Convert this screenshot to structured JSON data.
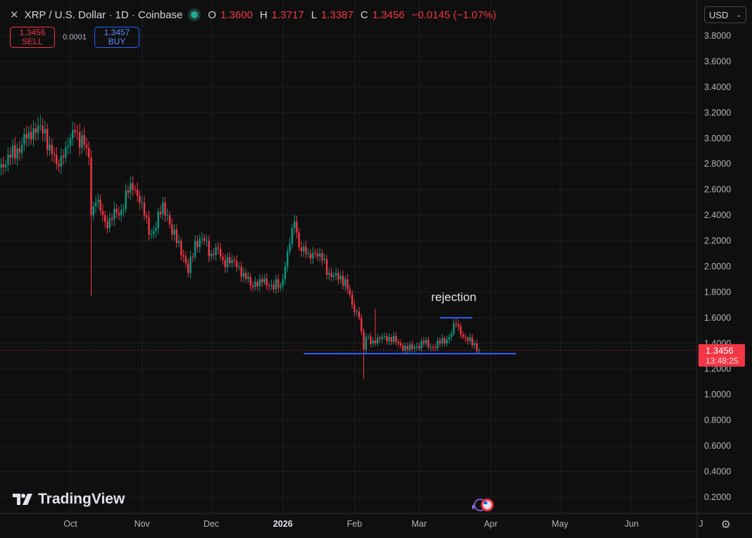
{
  "header": {
    "symbol_title": "XRP / U.S. Dollar · 1D · Coinbase",
    "close_icon": "close-icon",
    "market_status": "market-open-dot",
    "ohlc": {
      "o_label": "O",
      "o": "1.3600",
      "h_label": "H",
      "h": "1.3717",
      "l_label": "L",
      "l": "1.3387",
      "c_label": "C",
      "c": "1.3456",
      "change": "−0.0145 (−1.07%)"
    }
  },
  "trade": {
    "sell_price": "1.3456",
    "sell_label": "SELL",
    "spread": "0.0001",
    "buy_price": "1.3457",
    "buy_label": "BUY"
  },
  "currency": {
    "value": "USD",
    "icon": "chevron-down-icon"
  },
  "branding": {
    "logo_text": "TradingView"
  },
  "colors": {
    "up": "#089981",
    "down": "#f23645",
    "drawing": "#2962ff",
    "background": "#0f0f0f",
    "price_label": "#f23645"
  },
  "price_label": {
    "price": "1.3456",
    "countdown": "13:48:25"
  },
  "chart_data": {
    "type": "candlestick",
    "title": "XRP / U.S. Dollar · 1D · Coinbase",
    "interval": "1D",
    "grid": true,
    "y_ticks": [
      "3.8000",
      "3.6000",
      "3.4000",
      "3.2000",
      "3.0000",
      "2.8000",
      "2.6000",
      "2.4000",
      "2.2000",
      "2.0000",
      "1.8000",
      "1.6000",
      "1.4000",
      "1.2000",
      "1.0000",
      "0.8000",
      "0.6000",
      "0.4000",
      "0.2000"
    ],
    "ylim": [
      0.2,
      3.8
    ],
    "x_ticks": [
      {
        "label": "Oct",
        "date": "2025-10-01",
        "bold": false
      },
      {
        "label": "Nov",
        "date": "2025-11-01",
        "bold": false
      },
      {
        "label": "Dec",
        "date": "2025-12-01",
        "bold": false
      },
      {
        "label": "2026",
        "date": "2026-01-01",
        "bold": true
      },
      {
        "label": "Feb",
        "date": "2026-02-01",
        "bold": false
      },
      {
        "label": "Mar",
        "date": "2026-03-01",
        "bold": false
      },
      {
        "label": "Apr",
        "date": "2026-04-01",
        "bold": false
      },
      {
        "label": "May",
        "date": "2026-05-01",
        "bold": false
      },
      {
        "label": "Jun",
        "date": "2026-06-01",
        "bold": false
      },
      {
        "label": "J",
        "date": "2026-07-01",
        "bold": false
      }
    ],
    "approx_close_path": [
      [
        "2025-09-01",
        2.8
      ],
      [
        "2025-09-05",
        2.85
      ],
      [
        "2025-09-10",
        2.95
      ],
      [
        "2025-09-13",
        3.05
      ],
      [
        "2025-09-18",
        3.1
      ],
      [
        "2025-09-22",
        2.95
      ],
      [
        "2025-09-25",
        2.8
      ],
      [
        "2025-09-28",
        2.85
      ],
      [
        "2025-10-01",
        3.0
      ],
      [
        "2025-10-03",
        3.05
      ],
      [
        "2025-10-07",
        2.95
      ],
      [
        "2025-10-09",
        2.85
      ],
      [
        "2025-10-10",
        2.4
      ],
      [
        "2025-10-12",
        2.5
      ],
      [
        "2025-10-15",
        2.4
      ],
      [
        "2025-10-17",
        2.3
      ],
      [
        "2025-10-20",
        2.45
      ],
      [
        "2025-10-22",
        2.4
      ],
      [
        "2025-10-27",
        2.65
      ],
      [
        "2025-10-29",
        2.6
      ],
      [
        "2025-11-01",
        2.5
      ],
      [
        "2025-11-04",
        2.25
      ],
      [
        "2025-11-07",
        2.3
      ],
      [
        "2025-11-10",
        2.5
      ],
      [
        "2025-11-12",
        2.4
      ],
      [
        "2025-11-14",
        2.25
      ],
      [
        "2025-11-17",
        2.2
      ],
      [
        "2025-11-21",
        1.95
      ],
      [
        "2025-11-24",
        2.2
      ],
      [
        "2025-11-28",
        2.2
      ],
      [
        "2025-12-01",
        2.1
      ],
      [
        "2025-12-03",
        2.15
      ],
      [
        "2025-12-06",
        2.05
      ],
      [
        "2025-12-10",
        2.05
      ],
      [
        "2025-12-15",
        1.95
      ],
      [
        "2025-12-18",
        1.85
      ],
      [
        "2025-12-22",
        1.9
      ],
      [
        "2025-12-26",
        1.85
      ],
      [
        "2025-12-31",
        1.85
      ],
      [
        "2026-01-02",
        2.0
      ],
      [
        "2026-01-05",
        2.3
      ],
      [
        "2026-01-06",
        2.35
      ],
      [
        "2026-01-08",
        2.15
      ],
      [
        "2026-01-12",
        2.1
      ],
      [
        "2026-01-15",
        2.1
      ],
      [
        "2026-01-18",
        2.05
      ],
      [
        "2026-01-21",
        1.95
      ],
      [
        "2026-01-25",
        1.9
      ],
      [
        "2026-01-28",
        1.9
      ],
      [
        "2026-01-31",
        1.7
      ],
      [
        "2026-02-03",
        1.6
      ],
      [
        "2026-02-05",
        1.35
      ],
      [
        "2026-02-06",
        1.45
      ],
      [
        "2026-02-10",
        1.4
      ],
      [
        "2026-02-13",
        1.45
      ],
      [
        "2026-02-16",
        1.45
      ],
      [
        "2026-02-20",
        1.4
      ],
      [
        "2026-02-24",
        1.35
      ],
      [
        "2026-02-28",
        1.38
      ],
      [
        "2026-03-03",
        1.4
      ],
      [
        "2026-03-07",
        1.37
      ],
      [
        "2026-03-10",
        1.4
      ],
      [
        "2026-03-14",
        1.45
      ],
      [
        "2026-03-17",
        1.55
      ],
      [
        "2026-03-19",
        1.47
      ],
      [
        "2026-03-22",
        1.42
      ],
      [
        "2026-03-25",
        1.4
      ],
      [
        "2026-03-27",
        1.3456
      ]
    ],
    "notable_wicks": [
      {
        "date": "2025-09-18",
        "high": 3.18
      },
      {
        "date": "2025-10-10",
        "low": 1.77
      },
      {
        "date": "2026-01-06",
        "high": 2.41
      },
      {
        "date": "2026-02-05",
        "low": 1.12
      },
      {
        "date": "2026-02-10",
        "high": 1.67
      },
      {
        "date": "2026-03-17",
        "high": 1.6
      }
    ],
    "last_price": 1.3456,
    "annotations": [
      {
        "type": "text",
        "text": "rejection",
        "date": "2026-03-16",
        "price": 1.73
      },
      {
        "type": "horizontal-segment",
        "name": "rejection-line",
        "price": 1.6,
        "from": "2026-03-10",
        "to": "2026-03-24"
      },
      {
        "type": "horizontal-segment",
        "name": "support-line",
        "price": 1.32,
        "from": "2026-01-10",
        "to": "2026-04-12"
      }
    ]
  }
}
